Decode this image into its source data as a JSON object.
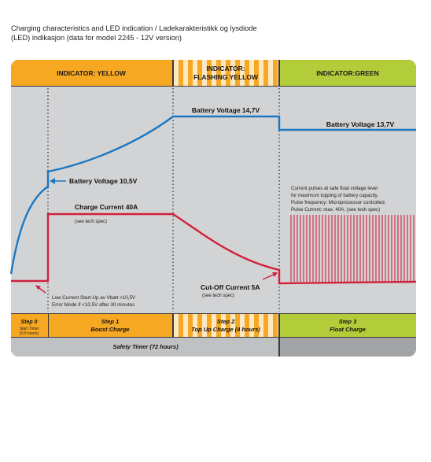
{
  "caption": {
    "line1": "Charging characteristics and LED indication / Ladekarakteristikk og lysdiode",
    "line2": "(LED) indikasjon (data for model 2245 - 12V version)"
  },
  "colors": {
    "yellow": "#f7a823",
    "yellow_light": "#fde8c4",
    "green": "#b3cc3a",
    "plot_bg": "#d2d3d5",
    "blue_curve": "#1b78c2",
    "red_curve": "#d0213c",
    "dark_frame": "#3a3a3a",
    "safety_bar": "#c0c1c3",
    "safety_bar_green": "#a3a4a6"
  },
  "header": {
    "yellow": "INDICATOR: YELLOW",
    "flashing_line1": "INDICATOR:",
    "flashing_line2": "FLASHING YELLOW",
    "green": "INDICATOR:GREEN"
  },
  "labels": {
    "battery_voltage_147": "Battery Voltage 14,7V",
    "battery_voltage_137": "Battery Voltage 13,7V",
    "battery_voltage_105": "Battery Voltage 10,5V",
    "charge_current": "Charge Current 40A",
    "see_tech_spec_1": "(see tech spec)",
    "cutoff_current": "Cut-Off Current 5A",
    "see_tech_spec_2": "(see tech spec)",
    "low_current_line1": "Low Current Start-Up av Vbatt <10,5V",
    "low_current_line2": "Error Mode if <10,5V after 30 minutes",
    "float_note_line1": "Current pulses at safe float voltage level",
    "float_note_line2": "for maximum topping of battery capacity.",
    "float_note_line3": "Pulse frequency: Microprocessor controlled.",
    "float_note_line4": "Pulse Current: max. 40A.   (see tech spec)"
  },
  "steps": [
    {
      "title": "Step 0",
      "subtitle_line1": "Start Timer",
      "subtitle_line2": "(0,5 hours)"
    },
    {
      "title": "Step 1",
      "subtitle_line1": "Boost Charge"
    },
    {
      "title": "Step 2",
      "subtitle_line1": "Top Up Charge (4 hours)"
    },
    {
      "title": "Step 3",
      "subtitle_line1": "Float Charge"
    }
  ],
  "safety_timer": "Safety Timer (72 hours)"
}
